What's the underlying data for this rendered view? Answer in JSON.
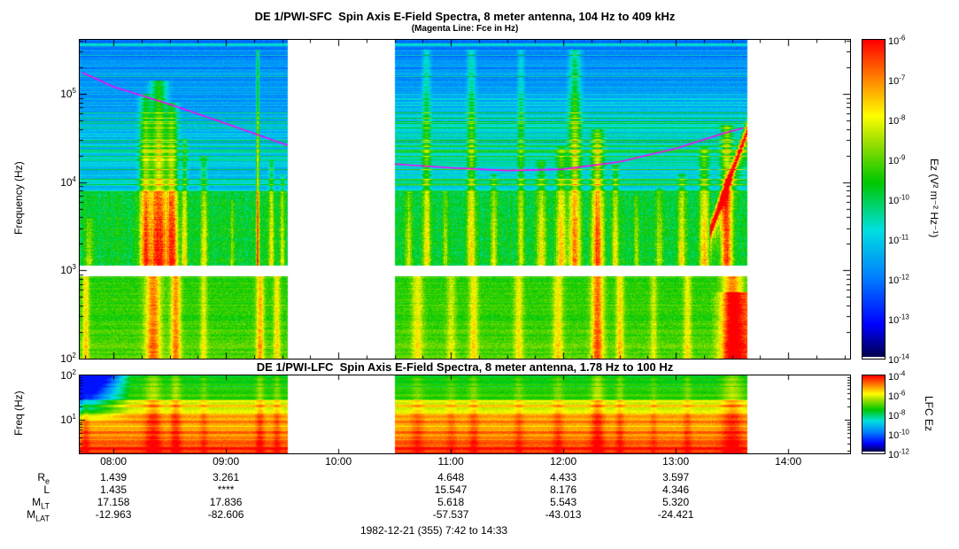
{
  "footer": "1982-12-21 (355) 7:42 to 14:33",
  "time_axis": {
    "labels": [
      "08:00",
      "09:00",
      "10:00",
      "11:00",
      "12:00",
      "13:00",
      "14:00"
    ],
    "hours": [
      8,
      9,
      10,
      11,
      12,
      13,
      14
    ],
    "start_hour": 7.7,
    "end_hour": 14.55
  },
  "ephemeris": {
    "column_hours": [
      8,
      9,
      11,
      12,
      13
    ],
    "rows": [
      {
        "label_base": "R",
        "label_sub": "e",
        "values": [
          "1.439",
          "3.261",
          "4.648",
          "4.433",
          "3.597"
        ]
      },
      {
        "label_base": "L",
        "label_sub": "",
        "values": [
          "1.435",
          "****",
          "15.547",
          "8.176",
          "4.346"
        ]
      },
      {
        "label_base": "M",
        "label_sub": "LT",
        "values": [
          "17.158",
          "17.836",
          "5.618",
          "5.543",
          "5.320"
        ]
      },
      {
        "label_base": "M",
        "label_sub": "LAT",
        "values": [
          "-12.963",
          "-82.606",
          "-57.537",
          "-43.013",
          "-24.421"
        ]
      }
    ]
  },
  "palette_stops": [
    [
      0.0,
      "#000050"
    ],
    [
      0.1,
      "#0000ff"
    ],
    [
      0.25,
      "#0080ff"
    ],
    [
      0.4,
      "#00e0e0"
    ],
    [
      0.55,
      "#00c800"
    ],
    [
      0.68,
      "#a0e000"
    ],
    [
      0.76,
      "#ffff00"
    ],
    [
      0.87,
      "#ff8c00"
    ],
    [
      1.0,
      "#ff0000"
    ]
  ],
  "chart_data": [
    {
      "type": "heatmap",
      "instrument": "DE 1/PWI-SFC",
      "title": "DE 1/PWI-SFC  Spin Axis E-Field Spectra, 8 meter antenna, 104 Hz to 409 kHz",
      "subtitle": "(Magenta Line: Fce in Hz)",
      "ylabel": "Frequency (Hz)",
      "y_range_hz": [
        100,
        409000
      ],
      "x_range_hours": [
        7.7,
        14.55
      ],
      "freq_tick_exponents": [
        5,
        4,
        3,
        2
      ],
      "colorbar": {
        "label": "Ez (V² m⁻² Hz⁻¹)",
        "tick_exponents": [
          -6,
          -7,
          -8,
          -9,
          -10,
          -11,
          -12,
          -13,
          -14
        ]
      },
      "data_gap_hours": [
        9.55,
        10.5
      ],
      "data_end_hour": 13.63,
      "blank_band_hz": [
        860,
        1130
      ],
      "spectral_lines_hz": [
        18000,
        60000
      ],
      "fce_line_color": "#ff00ff",
      "fce_line_points_hz": [
        [
          7.72,
          175000
        ],
        [
          8.0,
          120000
        ],
        [
          8.5,
          76000
        ],
        [
          9.0,
          46000
        ],
        [
          9.55,
          26000
        ],
        [
          10.5,
          16000
        ],
        [
          11.0,
          14500
        ],
        [
          11.5,
          13500
        ],
        [
          12.0,
          14000
        ],
        [
          12.5,
          17000
        ],
        [
          13.0,
          24000
        ],
        [
          13.4,
          35000
        ],
        [
          13.6,
          41000
        ]
      ],
      "bursts": [
        [
          7.78,
          0.35,
          0.03,
          3.6
        ],
        [
          8.28,
          0.85,
          0.05,
          5.0
        ],
        [
          8.4,
          1.0,
          0.07,
          5.15
        ],
        [
          8.52,
          0.9,
          0.05,
          4.9
        ],
        [
          8.63,
          0.55,
          0.025,
          4.5
        ],
        [
          8.8,
          0.5,
          0.03,
          4.3
        ],
        [
          9.05,
          0.3,
          0.02,
          3.8
        ],
        [
          9.28,
          0.95,
          0.013,
          5.5
        ],
        [
          9.4,
          0.5,
          0.025,
          4.25
        ],
        [
          9.5,
          0.45,
          0.02,
          4.1
        ],
        [
          10.62,
          0.4,
          0.03,
          3.9
        ],
        [
          10.78,
          0.5,
          0.035,
          5.5
        ],
        [
          10.95,
          0.35,
          0.025,
          3.9
        ],
        [
          11.18,
          0.55,
          0.035,
          5.5
        ],
        [
          11.38,
          0.45,
          0.03,
          4.1
        ],
        [
          11.62,
          0.4,
          0.03,
          5.5
        ],
        [
          11.8,
          0.55,
          0.04,
          4.25
        ],
        [
          11.98,
          0.65,
          0.045,
          4.4
        ],
        [
          12.1,
          0.75,
          0.05,
          5.5
        ],
        [
          12.3,
          0.9,
          0.05,
          4.6
        ],
        [
          12.46,
          0.55,
          0.03,
          4.2
        ],
        [
          12.65,
          0.35,
          0.025,
          3.85
        ],
        [
          12.85,
          0.4,
          0.03,
          3.95
        ],
        [
          13.05,
          0.5,
          0.035,
          4.1
        ],
        [
          13.25,
          0.65,
          0.04,
          4.4
        ],
        [
          13.45,
          0.85,
          0.05,
          4.65
        ]
      ],
      "lower_bursts": [
        [
          7.75,
          0.55,
          0.03
        ],
        [
          8.35,
          0.8,
          0.07
        ],
        [
          8.55,
          0.75,
          0.045
        ],
        [
          8.8,
          0.4,
          0.03
        ],
        [
          9.3,
          0.65,
          0.035
        ],
        [
          9.45,
          0.5,
          0.03
        ],
        [
          10.7,
          0.45,
          0.05
        ],
        [
          11.0,
          0.35,
          0.04
        ],
        [
          11.2,
          0.5,
          0.04
        ],
        [
          11.6,
          0.45,
          0.04
        ],
        [
          11.95,
          0.5,
          0.045
        ],
        [
          12.3,
          0.85,
          0.055
        ],
        [
          12.5,
          0.55,
          0.035
        ],
        [
          12.8,
          0.35,
          0.03
        ],
        [
          13.1,
          0.45,
          0.035
        ],
        [
          13.5,
          0.8,
          0.09
        ]
      ],
      "rising_feature": {
        "t_start": 13.3,
        "t_end": 13.62,
        "f_start_hz": 2800,
        "f_end_hz": 36000
      }
    },
    {
      "type": "heatmap",
      "instrument": "DE 1/PWI-LFC",
      "title": "DE 1/PWI-LFC  Spin Axis E-Field Spectra, 8 meter antenna, 1.78 Hz to 100 Hz",
      "ylabel": "Freq (Hz)",
      "y_range_hz": [
        1.78,
        100
      ],
      "x_range_hours": [
        7.7,
        14.55
      ],
      "freq_tick_exponents": [
        2,
        1
      ],
      "colorbar": {
        "label": "LFC Ez",
        "tick_exponents": [
          -4,
          -6,
          -8,
          -10,
          -12
        ]
      },
      "data_gap_hours": [
        9.55,
        10.5
      ],
      "data_end_hour": 13.63
    }
  ]
}
